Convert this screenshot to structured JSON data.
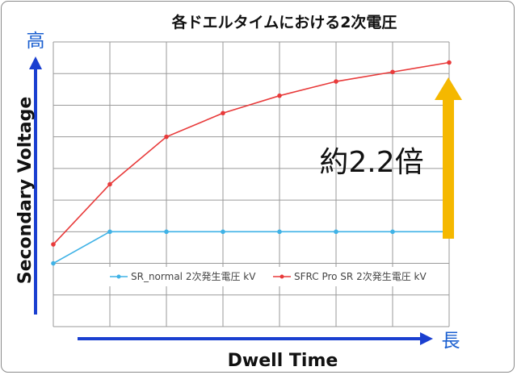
{
  "chart_data": {
    "type": "line",
    "title": "各ドエルタイムにおける2次電圧",
    "xlabel": "Dwell Time",
    "ylabel": "Secondary Voltage",
    "y_high_label": "高",
    "x_long_label": "長",
    "annotation": "約2.2倍",
    "x": [
      0,
      1,
      2,
      3,
      4,
      5,
      6,
      7
    ],
    "xlim": [
      0,
      7
    ],
    "ylim": [
      0,
      9
    ],
    "grid": true,
    "legend_position": "bottom-center",
    "series": [
      {
        "name": "SR_normal 2次発生電圧 kV",
        "color": "#3fb2e6",
        "values": [
          2.0,
          3.0,
          3.0,
          3.0,
          3.0,
          3.0,
          3.0,
          3.0
        ]
      },
      {
        "name": "SFRC Pro SR 2次発生電圧 kV",
        "color": "#e83a3a",
        "values": [
          2.6,
          4.5,
          6.0,
          6.75,
          7.3,
          7.75,
          8.05,
          8.35
        ]
      }
    ],
    "arrow_color": "#f5b800",
    "axis_arrow_color": "#1a3fd0"
  }
}
